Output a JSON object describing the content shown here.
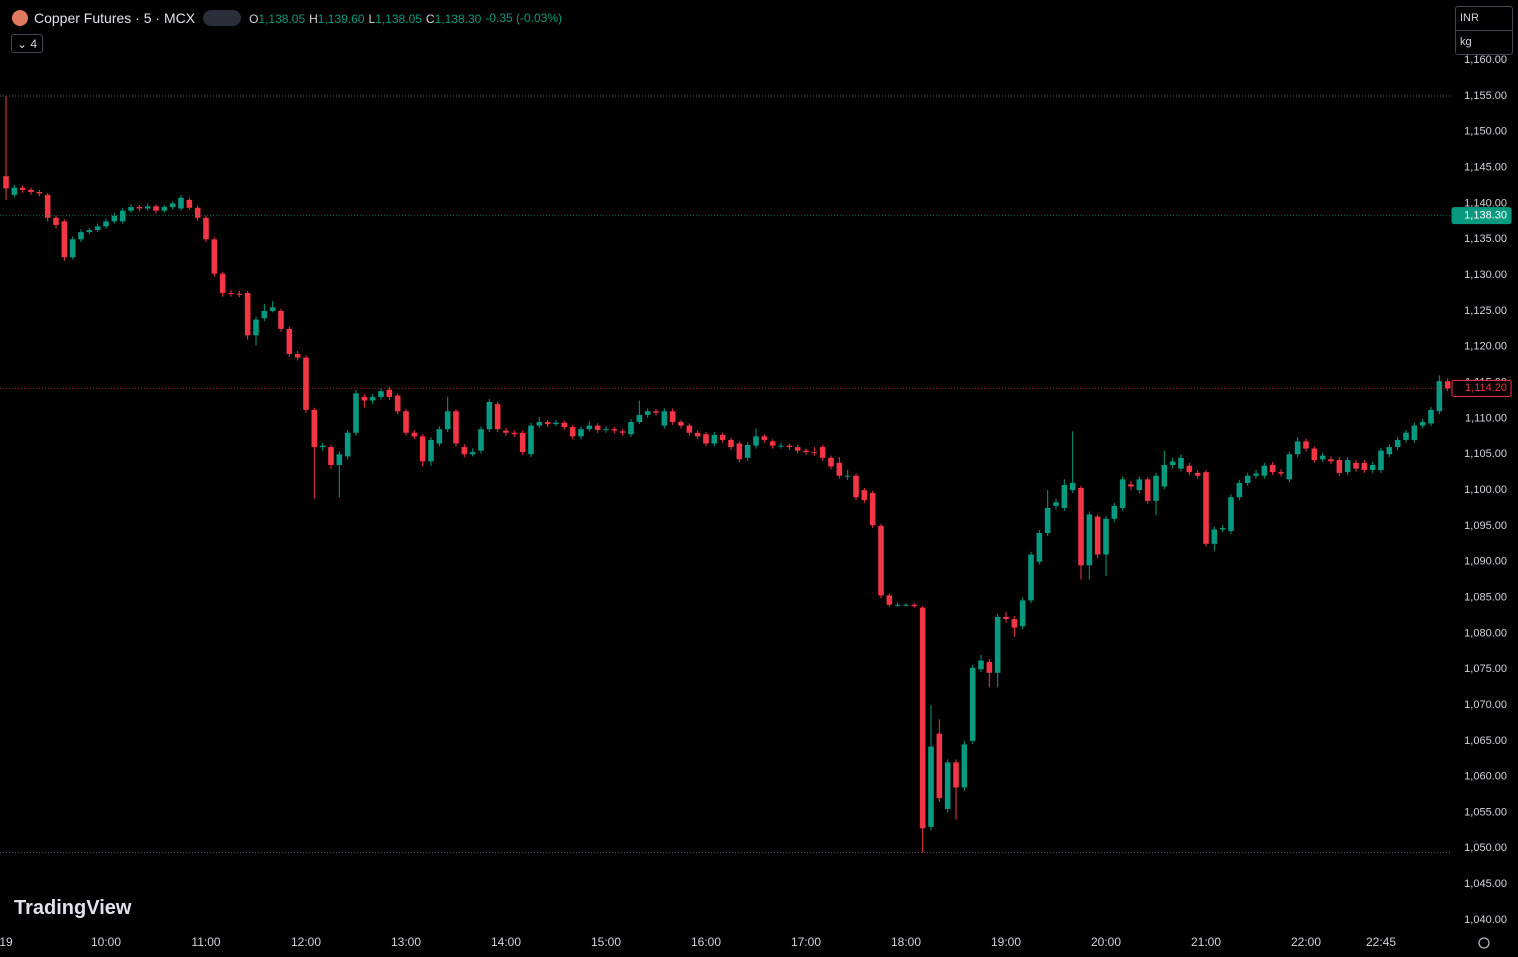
{
  "header": {
    "title": "Copper Futures · 5 · MCX",
    "legend": [
      {
        "label": "O",
        "value": "1,138.05"
      },
      {
        "label": "H",
        "value": "1,139.60"
      },
      {
        "label": "L",
        "value": "1,138.05"
      },
      {
        "label": "C",
        "value": "1,138.30"
      }
    ],
    "change": "-0.35 (-0.03%)",
    "indicator_count": "4",
    "currency": "INR",
    "unit": "kg",
    "watermark": "TradingView"
  },
  "chart_data": {
    "type": "candlestick",
    "up_color": "#089981",
    "down_color": "#f23645",
    "categories": [
      "19",
      null,
      null,
      null,
      null,
      null,
      null,
      null,
      null,
      null,
      null,
      null,
      "10:00",
      null,
      null,
      null,
      null,
      null,
      null,
      null,
      null,
      null,
      null,
      null,
      "11:00",
      null,
      null,
      null,
      null,
      null,
      null,
      null,
      null,
      null,
      null,
      null,
      "12:00",
      null,
      null,
      null,
      null,
      null,
      null,
      null,
      null,
      null,
      null,
      null,
      "13:00",
      null,
      null,
      null,
      null,
      null,
      null,
      null,
      null,
      null,
      null,
      null,
      "14:00",
      null,
      null,
      null,
      null,
      null,
      null,
      null,
      null,
      null,
      null,
      null,
      "15:00",
      null,
      null,
      null,
      null,
      null,
      null,
      null,
      null,
      null,
      null,
      null,
      "16:00",
      null,
      null,
      null,
      null,
      null,
      null,
      null,
      null,
      null,
      null,
      null,
      "17:00",
      null,
      null,
      null,
      null,
      null,
      null,
      null,
      null,
      null,
      null,
      null,
      "18:00",
      null,
      null,
      null,
      null,
      null,
      null,
      null,
      null,
      null,
      null,
      null,
      "19:00",
      null,
      null,
      null,
      null,
      null,
      null,
      null,
      null,
      null,
      null,
      null,
      "20:00",
      null,
      null,
      null,
      null,
      null,
      null,
      null,
      null,
      null,
      null,
      null,
      "21:00",
      null,
      null,
      null,
      null,
      null,
      null,
      null,
      null,
      null,
      null,
      null,
      "22:00",
      null,
      null,
      null,
      null,
      null,
      null,
      null,
      null,
      "22:45",
      null,
      null,
      null,
      null,
      null,
      null,
      null,
      null
    ],
    "open": [
      1143.8,
      1141.2,
      1142.2,
      1141.9,
      1141.6,
      1141.2,
      1138,
      1137.5,
      1132.5,
      1135,
      1136,
      1136.3,
      1136.8,
      1137.5,
      1137.5,
      1139,
      1139.5,
      1139.3,
      1139.6,
      1139,
      1139.5,
      1139.3,
      1140.5,
      1139.4,
      1138,
      1135,
      1130.2,
      1127.5,
      1127.4,
      1127.5,
      1121.6,
      1124,
      1125,
      1125,
      1122.5,
      1119,
      1118.5,
      1111.2,
      1106,
      1106,
      1103.5,
      1104.7,
      1108,
      1113,
      1112.5,
      1113,
      1114,
      1113.2,
      1111,
      1108,
      1107.5,
      1104,
      1106.5,
      1108.5,
      1111,
      1106,
      1105,
      1105.5,
      1108.5,
      1112,
      1108.3,
      1108,
      1108,
      1105,
      1109,
      1109.5,
      1109.2,
      1109.4,
      1108.8,
      1107.5,
      1108.5,
      1109,
      1108.4,
      1108.5,
      1108.2,
      1107.8,
      1109.5,
      1110.5,
      1111,
      1109,
      1111,
      1109.5,
      1109,
      1108,
      1107.8,
      1106.5,
      1107.7,
      1107,
      1106.5,
      1104.5,
      1106.2,
      1107.5,
      1106.8,
      1106.2,
      1106.2,
      1106,
      1105.5,
      1105.3,
      1106,
      1104.5,
      1103.8,
      1102,
      1102,
      1100,
      1099.6,
      1095,
      1085.3,
      1084,
      1084,
      1084,
      1083.6,
      1053,
      1066,
      1055.5,
      1062,
      1058.5,
      1065,
      1075,
      1076,
      1074.5,
      1082.3,
      1082,
      1081,
      1084.6,
      1090,
      1094,
      1097.8,
      1097.5,
      1100,
      1100.3,
      1089.5,
      1096.3,
      1091,
      1096,
      1097.5,
      1100.8,
      1100,
      1101.5,
      1098.5,
      1100.5,
      1103.5,
      1103,
      1103.4,
      1102.4,
      1102.5,
      1092.5,
      1094.5,
      1094.3,
      1099,
      1101,
      1102,
      1102,
      1103.5,
      1102.5,
      1101.5,
      1105,
      1106.8,
      1105.8,
      1104.3,
      1104.3,
      1104.2,
      1102.5,
      1103.8,
      1103.8,
      1102.8,
      1102.8,
      1105,
      1106,
      1107,
      1107,
      1109,
      1109.3,
      1111,
      1115.2
    ],
    "high": [
      1155,
      1142.6,
      1142.5,
      1142.2,
      1141.9,
      1141.5,
      1138.3,
      1137.8,
      1135.4,
      1136.4,
      1136.6,
      1137.2,
      1137.9,
      1138.7,
      1139.4,
      1139.9,
      1139.8,
      1140,
      1139.9,
      1139.8,
      1140.3,
      1141.2,
      1140.8,
      1139.7,
      1138.3,
      1135.3,
      1130.5,
      1127.9,
      1127.8,
      1127.8,
      1124.2,
      1126,
      1126.4,
      1125.3,
      1122.8,
      1119.4,
      1118.8,
      1111.5,
      1106.6,
      1106.3,
      1105.4,
      1108.4,
      1114,
      1113.4,
      1113.4,
      1114.2,
      1114.4,
      1113.5,
      1111.3,
      1108.4,
      1107.8,
      1107.4,
      1108.9,
      1113,
      1111.3,
      1106.4,
      1105.8,
      1108.9,
      1112.7,
      1112.3,
      1108.7,
      1108.3,
      1108.3,
      1109.4,
      1110.2,
      1109.8,
      1109.8,
      1109.7,
      1109.1,
      1108.9,
      1109.6,
      1109.3,
      1108.9,
      1108.8,
      1108.5,
      1109.9,
      1112.5,
      1111.4,
      1111.3,
      1111.4,
      1111.4,
      1109.8,
      1109.3,
      1108.3,
      1108.1,
      1108.1,
      1108,
      1107.3,
      1106.8,
      1106.7,
      1108.6,
      1107.8,
      1107.1,
      1106.6,
      1106.5,
      1106.3,
      1105.8,
      1106,
      1106.3,
      1104.8,
      1104.6,
      1102.8,
      1102.3,
      1100.3,
      1099.9,
      1095.3,
      1085.6,
      1084.3,
      1084.2,
      1084.2,
      1083.8,
      1070,
      1068,
      1062.4,
      1062.4,
      1065,
      1075.6,
      1077,
      1076.4,
      1082.7,
      1083,
      1082.4,
      1085,
      1091.4,
      1094.4,
      1100,
      1098.8,
      1101.5,
      1108.2,
      1100.6,
      1097,
      1096.6,
      1096.4,
      1098.2,
      1101.9,
      1101.3,
      1101.9,
      1101.8,
      1102.4,
      1105.5,
      1104.5,
      1105,
      1103.8,
      1102.8,
      1102.8,
      1094.9,
      1095.1,
      1099.4,
      1101.4,
      1102.4,
      1102.8,
      1103.8,
      1103.9,
      1102.9,
      1105.4,
      1107.4,
      1107.2,
      1106.1,
      1105.2,
      1104.7,
      1104.6,
      1104.6,
      1104.2,
      1104.2,
      1103.9,
      1105.9,
      1106.4,
      1107.4,
      1108.4,
      1109.4,
      1109.9,
      1111.6,
      1116,
      1115.6
    ],
    "low": [
      1140.5,
      1140.8,
      1141.5,
      1141.2,
      1141,
      1137.5,
      1136.5,
      1132,
      1132.2,
      1134.6,
      1135.7,
      1136,
      1136.5,
      1137.2,
      1137.2,
      1138.7,
      1138.9,
      1139,
      1138.6,
      1138.7,
      1139.2,
      1139,
      1139.1,
      1137.6,
      1134.6,
      1129.8,
      1127,
      1127,
      1126.9,
      1121,
      1120.2,
      1123.6,
      1124.8,
      1122.1,
      1118.6,
      1118.1,
      1110.8,
      1098.8,
      1105.5,
      1103,
      1099,
      1104.3,
      1107.6,
      1111.5,
      1112,
      1112.6,
      1112.6,
      1110.6,
      1107.6,
      1107.1,
      1103.3,
      1103.4,
      1106.1,
      1108.1,
      1106.1,
      1104.6,
      1104.7,
      1105.1,
      1108.1,
      1108.1,
      1107.6,
      1107.4,
      1104.9,
      1104.6,
      1108.7,
      1108.8,
      1108.9,
      1108.4,
      1107.1,
      1107.1,
      1108.2,
      1108,
      1108,
      1107.9,
      1107.6,
      1107.4,
      1109.2,
      1110.1,
      1110.4,
      1108.6,
      1109.1,
      1108.6,
      1107.6,
      1107.1,
      1106.1,
      1106.1,
      1106.6,
      1105.6,
      1103.9,
      1104.1,
      1105.8,
      1106.6,
      1105.8,
      1105.8,
      1105.6,
      1105.1,
      1104.9,
      1104.8,
      1104.1,
      1102.9,
      1101.6,
      1101.4,
      1098.6,
      1098.2,
      1094.7,
      1084.9,
      1083.7,
      1083.7,
      1083.8,
      1083.6,
      1049.4,
      1052.5,
      1056.5,
      1055,
      1054,
      1058,
      1064.6,
      1074.6,
      1072.5,
      1072.5,
      1081.5,
      1079.5,
      1080.6,
      1084.2,
      1089.6,
      1093.6,
      1097.3,
      1097.1,
      1099.6,
      1087.5,
      1087.5,
      1090.5,
      1088,
      1095.6,
      1097.1,
      1100,
      1099.6,
      1098.1,
      1096.5,
      1100.1,
      1103,
      1102.6,
      1102.1,
      1101.6,
      1092.1,
      1091.5,
      1094.1,
      1093.9,
      1098.6,
      1100.6,
      1101.6,
      1101.6,
      1102.1,
      1101.9,
      1101.1,
      1104.6,
      1105.4,
      1103.8,
      1103.9,
      1103.6,
      1102,
      1102.1,
      1102.6,
      1102.4,
      1102.4,
      1102.4,
      1104.6,
      1105.6,
      1106.6,
      1106.6,
      1108.6,
      1108.9,
      1110.6,
      1113.8
    ],
    "close": [
      1142.1,
      1142.2,
      1141.9,
      1141.6,
      1141.4,
      1138,
      1137,
      1132.5,
      1135,
      1136,
      1136.3,
      1136.8,
      1137.5,
      1138.3,
      1139,
      1139.5,
      1139.3,
      1139.6,
      1139,
      1139.5,
      1140,
      1140.8,
      1139.4,
      1138,
      1135,
      1130.2,
      1127.5,
      1127.4,
      1127.3,
      1121.6,
      1123.8,
      1125,
      1125.5,
      1122.5,
      1119,
      1118.5,
      1111.2,
      1106,
      1106.2,
      1103.5,
      1105,
      1108,
      1113.5,
      1112.5,
      1113,
      1113.8,
      1113,
      1111,
      1108,
      1107.5,
      1104,
      1107,
      1108.5,
      1111,
      1106.5,
      1105,
      1105.3,
      1108.5,
      1112.3,
      1108.5,
      1108,
      1107.8,
      1105.3,
      1109,
      1109.5,
      1109.2,
      1109.4,
      1108.8,
      1107.5,
      1108.5,
      1109,
      1108.4,
      1108.5,
      1108.3,
      1108,
      1109.5,
      1110.5,
      1111,
      1110.8,
      1111,
      1109.5,
      1109,
      1108,
      1107.5,
      1106.5,
      1107.7,
      1107,
      1106,
      1104.3,
      1106.3,
      1107.5,
      1107,
      1106.2,
      1106.2,
      1106,
      1105.5,
      1105.3,
      1105.2,
      1104.5,
      1103.3,
      1102,
      1102,
      1099,
      1098.6,
      1095.1,
      1085.3,
      1084,
      1084,
      1084,
      1083.8,
      1052.8,
      1064.2,
      1057,
      1062,
      1058.5,
      1064.5,
      1075.2,
      1076.2,
      1074.5,
      1082.3,
      1082,
      1080.8,
      1084.6,
      1091,
      1094,
      1097.5,
      1098.3,
      1100.7,
      1101,
      1089.5,
      1096.6,
      1091,
      1096,
      1097.8,
      1101.5,
      1100.5,
      1101.5,
      1098.5,
      1102,
      1103.5,
      1104,
      1104.5,
      1102.5,
      1102,
      1092.5,
      1094.5,
      1094.7,
      1099,
      1101,
      1102,
      1102.3,
      1103.4,
      1102.5,
      1102.3,
      1105,
      1106.8,
      1105.8,
      1104.2,
      1104.8,
      1104,
      1102.4,
      1104.2,
      1103,
      1102.8,
      1103.5,
      1105.5,
      1106,
      1107,
      1108,
      1109,
      1109.5,
      1111.2,
      1115.2,
      1114.2
    ],
    "ylim": [
      1038.6,
      1168.4
    ],
    "yticks": [
      {
        "value": 1040,
        "label": "1,040.00"
      },
      {
        "value": 1045,
        "label": "1,045.00"
      },
      {
        "value": 1050,
        "label": "1,050.00"
      },
      {
        "value": 1055,
        "label": "1,055.00"
      },
      {
        "value": 1060,
        "label": "1,060.00"
      },
      {
        "value": 1065,
        "label": "1,065.00"
      },
      {
        "value": 1070,
        "label": "1,070.00"
      },
      {
        "value": 1075,
        "label": "1,075.00"
      },
      {
        "value": 1080,
        "label": "1,080.00"
      },
      {
        "value": 1085,
        "label": "1,085.00"
      },
      {
        "value": 1090,
        "label": "1,090.00"
      },
      {
        "value": 1095,
        "label": "1,095.00"
      },
      {
        "value": 1100,
        "label": "1,100.00"
      },
      {
        "value": 1105,
        "label": "1,105.00"
      },
      {
        "value": 1110,
        "label": "1,110.00"
      },
      {
        "value": 1115,
        "label": "1,115.00"
      },
      {
        "value": 1120,
        "label": "1,120.00"
      },
      {
        "value": 1125,
        "label": "1,125.00"
      },
      {
        "value": 1130,
        "label": "1,130.00"
      },
      {
        "value": 1135,
        "label": "1,135.00"
      },
      {
        "value": 1140,
        "label": "1,140.00"
      },
      {
        "value": 1145,
        "label": "1,145.00"
      },
      {
        "value": 1150,
        "label": "1,150.00"
      },
      {
        "value": 1155,
        "label": "1,155.00"
      },
      {
        "value": 1160,
        "label": "1,160.00"
      }
    ],
    "reference_lines": [
      1155,
      1049.4
    ],
    "price_markers": [
      {
        "value": 1138.3,
        "label": "1,138.30",
        "color": "#089981",
        "filled": true
      },
      {
        "value": 1114.2,
        "label": "1,114.20",
        "color": "#f23645",
        "filled": false
      }
    ]
  }
}
